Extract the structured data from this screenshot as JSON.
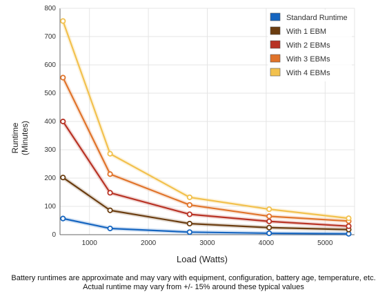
{
  "chart_data": {
    "type": "line",
    "xlabel": "Load (Watts)",
    "ylabel_lines": [
      "Runtime",
      "(Minutes)"
    ],
    "xlim": [
      500,
      5500
    ],
    "ylim": [
      0,
      800
    ],
    "x_ticks": [
      1000,
      2000,
      3000,
      4000,
      5000
    ],
    "y_ticks": [
      0,
      100,
      200,
      300,
      400,
      500,
      600,
      700,
      800
    ],
    "grid": true,
    "legend_position": "top-right",
    "x": [
      550,
      1350,
      2700,
      4050,
      5400
    ],
    "series": [
      {
        "name": "Standard Runtime",
        "color": "#1565c0",
        "values": [
          57,
          22,
          9,
          5,
          3
        ]
      },
      {
        "name": "With 1 EBM",
        "color": "#6b3d10",
        "values": [
          202,
          86,
          39,
          25,
          18
        ]
      },
      {
        "name": "With 2 EBMs",
        "color": "#b83224",
        "values": [
          400,
          148,
          72,
          47,
          30
        ]
      },
      {
        "name": "With 3 EBMs",
        "color": "#e0732a",
        "values": [
          555,
          214,
          105,
          65,
          48
        ]
      },
      {
        "name": "With 4 EBMs",
        "color": "#f2c14e",
        "values": [
          755,
          286,
          132,
          90,
          58
        ]
      }
    ]
  },
  "footnote": {
    "line1": "Battery runtimes are approximate and may vary with equipment, configuration, battery age, temperature, etc.",
    "line2": "Actual runtime may vary from +/- 15% around these typical values"
  }
}
